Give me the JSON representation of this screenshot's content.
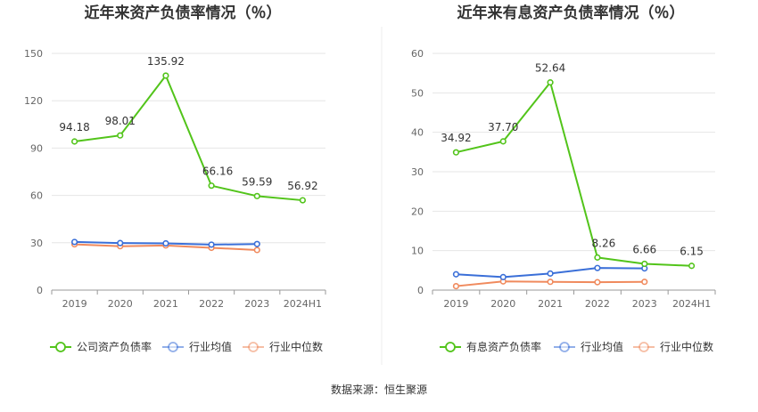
{
  "source_note": "数据来源：恒生聚源",
  "chart_data": [
    {
      "type": "line",
      "title": "近年来资产负债率情况（％）",
      "categories": [
        "2019",
        "2020",
        "2021",
        "2022",
        "2023",
        "2024H1"
      ],
      "ylim": [
        0,
        150
      ],
      "yticks": [
        0,
        30,
        60,
        90,
        120,
        150
      ],
      "grid": true,
      "legend_position": "bottom",
      "series": [
        {
          "name": "公司资产负债率",
          "color": "#52c41a",
          "values": [
            94.18,
            98.01,
            135.92,
            66.16,
            59.59,
            56.92
          ],
          "labeled": true
        },
        {
          "name": "行业均值",
          "color": "#3a6fd8",
          "values": [
            30.5,
            29.8,
            29.6,
            28.8,
            29.2,
            null
          ],
          "labeled": false
        },
        {
          "name": "行业中位数",
          "color": "#f08a5d",
          "values": [
            29.0,
            27.8,
            28.3,
            26.8,
            25.4,
            null
          ],
          "labeled": false
        }
      ]
    },
    {
      "type": "line",
      "title": "近年来有息资产负债率情况（％）",
      "categories": [
        "2019",
        "2020",
        "2021",
        "2022",
        "2023",
        "2024H1"
      ],
      "ylim": [
        0,
        60
      ],
      "yticks": [
        0,
        10,
        20,
        30,
        40,
        50,
        60
      ],
      "grid": true,
      "legend_position": "bottom",
      "series": [
        {
          "name": "有息资产负债率",
          "color": "#52c41a",
          "values": [
            34.92,
            37.7,
            52.64,
            8.26,
            6.66,
            6.15
          ],
          "labeled": true
        },
        {
          "name": "行业均值",
          "color": "#3a6fd8",
          "values": [
            4.0,
            3.3,
            4.2,
            5.6,
            5.5,
            null
          ],
          "labeled": false
        },
        {
          "name": "行业中位数",
          "color": "#f08a5d",
          "values": [
            1.0,
            2.2,
            2.1,
            2.0,
            2.1,
            null
          ],
          "labeled": false
        }
      ]
    }
  ]
}
